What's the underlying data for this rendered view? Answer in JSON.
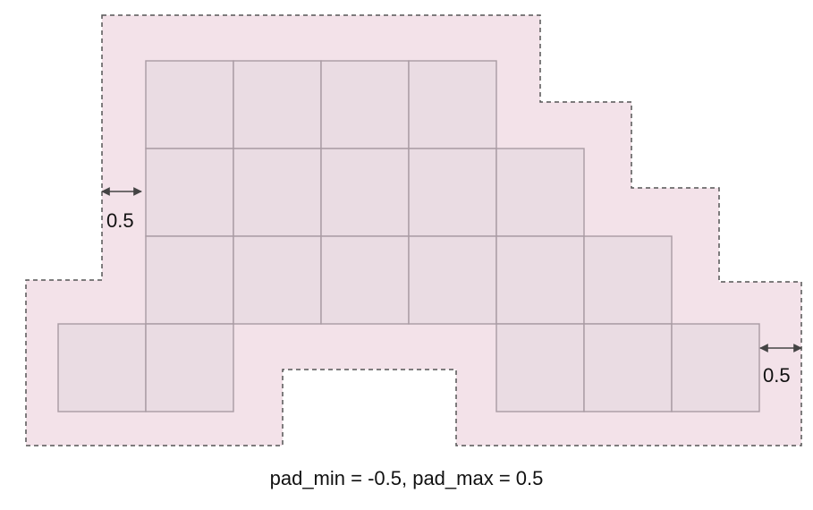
{
  "diagram": {
    "padding_annotations": {
      "left_label": "0.5",
      "right_label": "0.5"
    },
    "caption": "pad_min = -0.5, pad_max = 0.5",
    "colors": {
      "cell_fill": "#eadce3",
      "cell_border": "#a99ba3",
      "padding_fill": "#f3e2e9",
      "padding_outline": "#555555",
      "arrow": "#444444"
    },
    "grid_rows": [
      {
        "row": 0,
        "cols": [
          1,
          2,
          3,
          4
        ]
      },
      {
        "row": 1,
        "cols": [
          1,
          2,
          3,
          4,
          5
        ]
      },
      {
        "row": 2,
        "cols": [
          1,
          2,
          3,
          4,
          5,
          6
        ]
      },
      {
        "row": 3,
        "cols": [
          0,
          1,
          5,
          6,
          7
        ]
      }
    ]
  }
}
